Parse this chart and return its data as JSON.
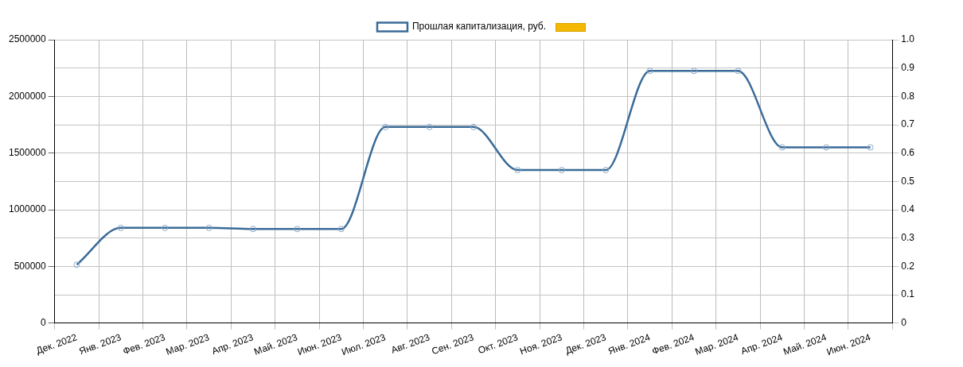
{
  "chart_data": {
    "type": "line",
    "categories": [
      "Дек. 2022",
      "Янв. 2023",
      "Фев. 2023",
      "Мар. 2023",
      "Апр. 2023",
      "Май. 2023",
      "Июн. 2023",
      "Июл. 2023",
      "Авг. 2023",
      "Сен. 2023",
      "Окт. 2023",
      "Ноя. 2023",
      "Дек. 2023",
      "Янв. 2024",
      "Фев. 2024",
      "Мар. 2024",
      "Апр. 2024",
      "Май. 2024",
      "Июн. 2024"
    ],
    "series": [
      {
        "name": "Прошлая капитализация, руб.",
        "color": "#3a6b98",
        "values": [
          515000,
          840000,
          840000,
          840000,
          830000,
          830000,
          830000,
          1730000,
          1730000,
          1730000,
          1350000,
          1350000,
          1350000,
          2225000,
          2225000,
          2225000,
          1550000,
          1550000,
          1550000
        ]
      }
    ],
    "ylim": [
      0,
      2500000
    ],
    "yticks": [
      0,
      500000,
      1000000,
      1500000,
      2000000,
      2500000
    ],
    "y2lim": [
      0,
      1
    ],
    "y2ticks": [
      {
        "value": 0,
        "label": "0"
      },
      0.1,
      0.2,
      0.3,
      0.4,
      0.5,
      0.6,
      0.7,
      0.8,
      0.9,
      {
        "value": 1,
        "label": "1.0"
      }
    ],
    "grid": true,
    "legend": "top",
    "marker": "circle",
    "line_style": "solid"
  }
}
